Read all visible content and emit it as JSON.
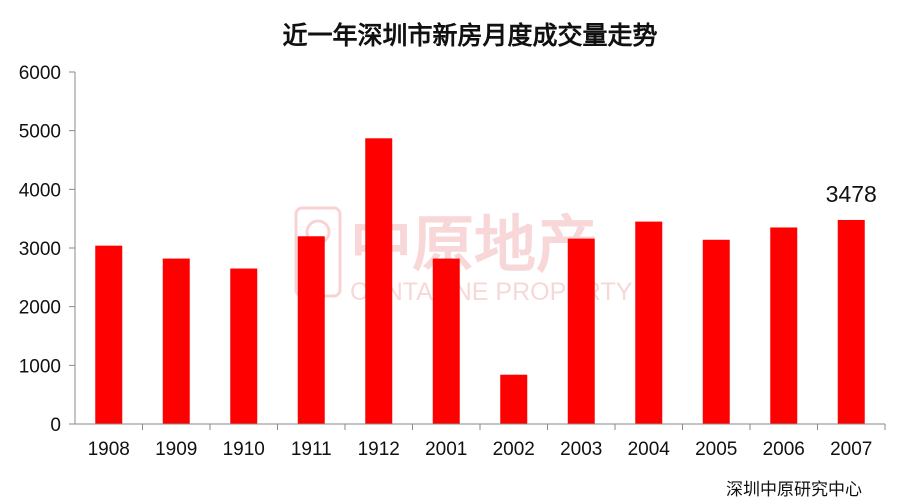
{
  "chart_data": {
    "type": "bar",
    "title": "近一年深圳市新房月度成交量走势",
    "categories": [
      "1908",
      "1909",
      "1910",
      "1911",
      "1912",
      "2001",
      "2002",
      "2003",
      "2004",
      "2005",
      "2006",
      "2007"
    ],
    "values": [
      3040,
      2820,
      2650,
      3200,
      4870,
      2820,
      840,
      3160,
      3450,
      3140,
      3350,
      3478
    ],
    "ylim": [
      0,
      6000
    ],
    "yticks": [
      0,
      1000,
      2000,
      3000,
      4000,
      5000,
      6000
    ],
    "xlabel": "",
    "ylabel": "",
    "grid": false,
    "bar_color": "#ff0000",
    "annotations": [
      {
        "category": "2007",
        "text": "3478"
      }
    ]
  },
  "source": "深圳中原研究中心",
  "watermark": {
    "cn": "中原地产",
    "en": "CENTALINE PROPERTY"
  }
}
